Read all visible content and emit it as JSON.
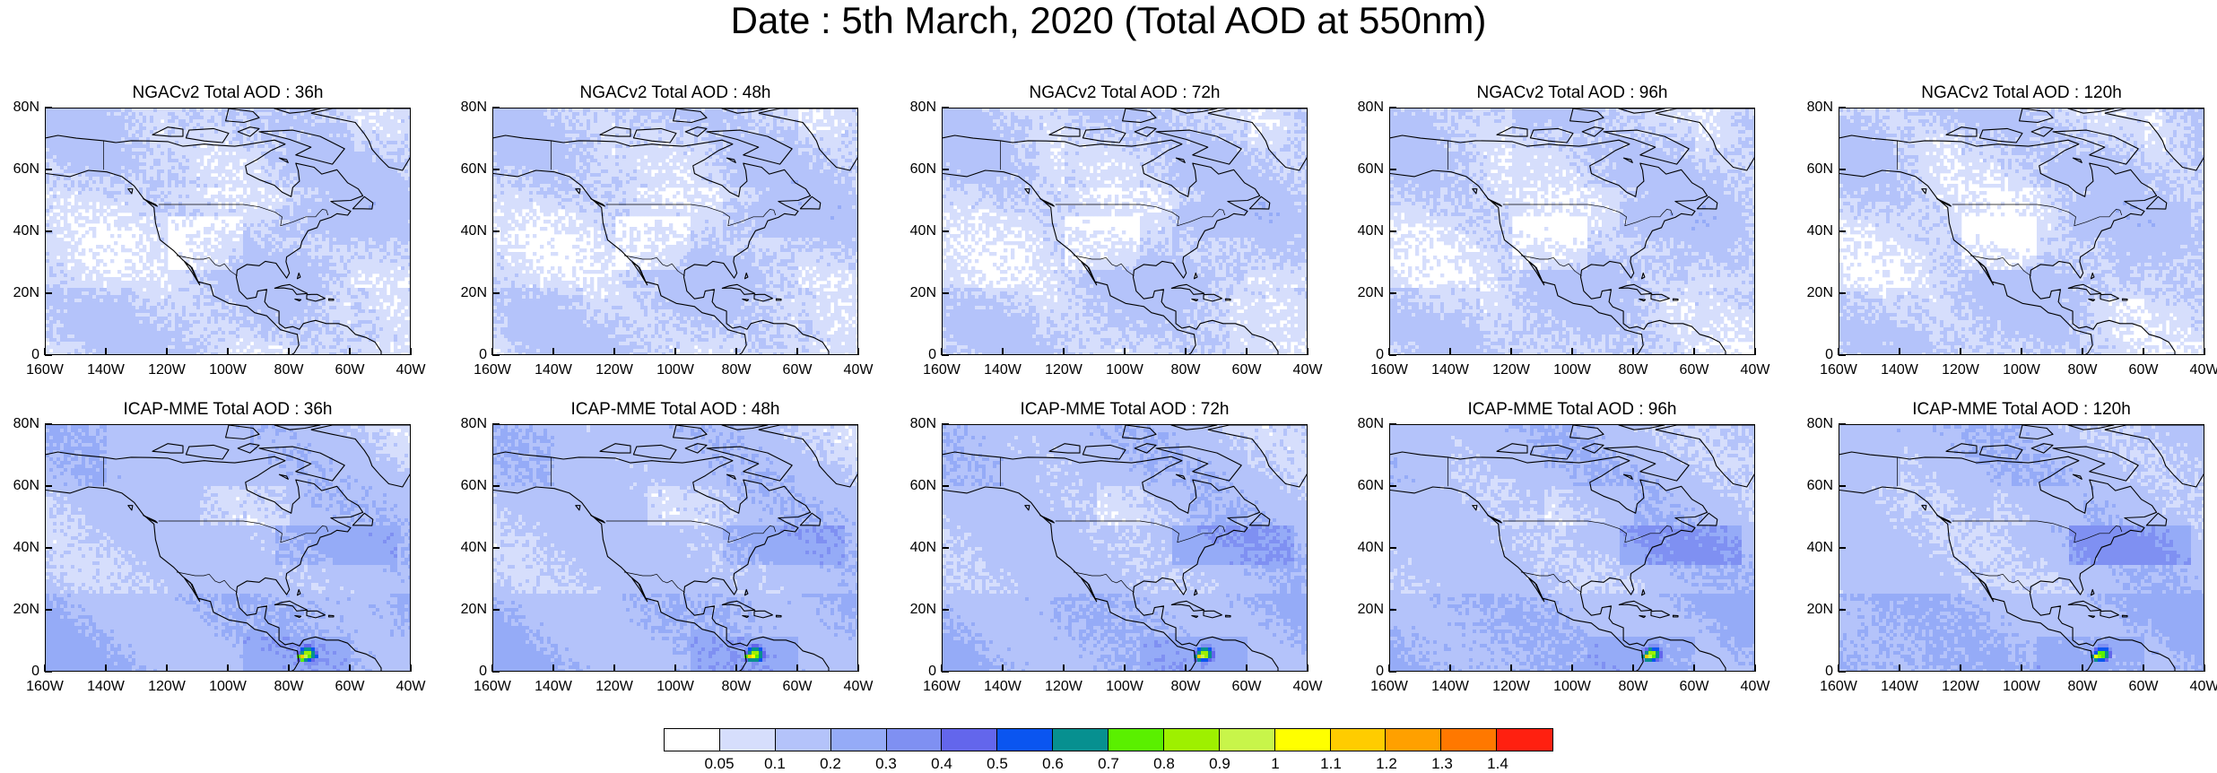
{
  "title": "Date : 5th March, 2020 (Total AOD at 550nm)",
  "x_ticks": [
    "160W",
    "140W",
    "120W",
    "100W",
    "80W",
    "60W",
    "40W"
  ],
  "y_ticks": [
    "80N",
    "60N",
    "40N",
    "20N",
    "0"
  ],
  "map_extent": {
    "lon": [
      -160,
      -40
    ],
    "lat": [
      0,
      80
    ]
  },
  "rows": [
    {
      "model": "NGACv2",
      "panels": [
        {
          "title": "NGACv2 Total AOD : 36h",
          "forecast_hour": 36
        },
        {
          "title": "NGACv2 Total AOD : 48h",
          "forecast_hour": 48
        },
        {
          "title": "NGACv2 Total AOD : 72h",
          "forecast_hour": 72
        },
        {
          "title": "NGACv2 Total AOD : 96h",
          "forecast_hour": 96
        },
        {
          "title": "NGACv2 Total AOD : 120h",
          "forecast_hour": 120
        }
      ]
    },
    {
      "model": "ICAP-MME",
      "panels": [
        {
          "title": "ICAP-MME Total AOD : 36h",
          "forecast_hour": 36
        },
        {
          "title": "ICAP-MME Total AOD : 48h",
          "forecast_hour": 48
        },
        {
          "title": "ICAP-MME Total AOD : 72h",
          "forecast_hour": 72
        },
        {
          "title": "ICAP-MME Total AOD : 96h",
          "forecast_hour": 96
        },
        {
          "title": "ICAP-MME Total AOD : 120h",
          "forecast_hour": 120
        }
      ]
    }
  ],
  "colorbar": {
    "labels": [
      "0.05",
      "0.1",
      "0.2",
      "0.3",
      "0.4",
      "0.5",
      "0.6",
      "0.7",
      "0.8",
      "0.9",
      "1",
      "1.1",
      "1.2",
      "1.3",
      "1.4"
    ],
    "colors": [
      "#ffffff",
      "#d6defc",
      "#b4c3fa",
      "#95abf7",
      "#7f90f2",
      "#6366ec",
      "#0a55f0",
      "#079090",
      "#5af000",
      "#9ef000",
      "#c8f54a",
      "#ffff00",
      "#ffcc00",
      "#ffa000",
      "#ff7800",
      "#ff2010"
    ]
  }
}
